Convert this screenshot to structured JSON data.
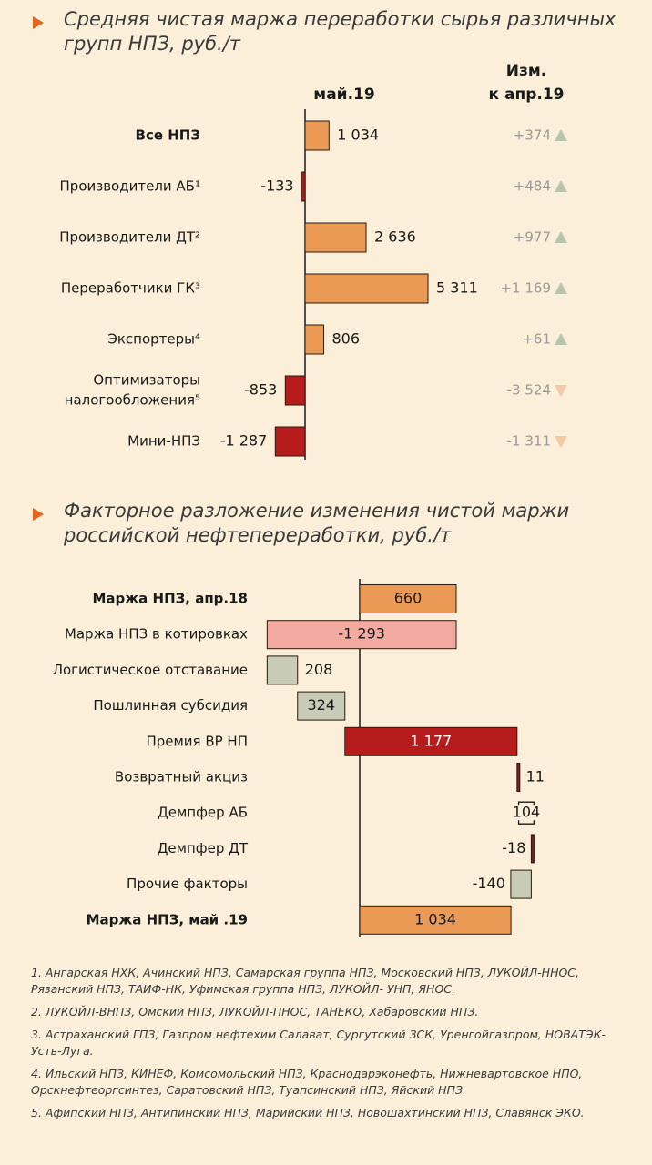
{
  "section1": {
    "title": "Средняя чистая маржа переработки сырья различных групп НПЗ, руб./т"
  },
  "section2": {
    "title": "Факторное разложение изменения чистой маржи российской нефтепереработки, руб./т"
  },
  "chart_data": [
    {
      "type": "bar",
      "orientation": "horizontal",
      "title": "Средняя чистая маржа переработки сырья различных групп НПЗ, руб./т",
      "value_column_header": "май.19",
      "change_column_header": [
        "Изм.",
        "к апр.19"
      ],
      "categories": [
        {
          "label": "Все НПЗ",
          "bold": true
        },
        {
          "label": "Производители АБ¹"
        },
        {
          "label": "Производители ДТ²"
        },
        {
          "label": "Переработчики ГК³"
        },
        {
          "label": "Экспортеры⁴"
        },
        {
          "label": "Оптимизаторы налогообложения⁵",
          "lines": [
            "Оптимизаторы",
            "налогообложения⁵"
          ]
        },
        {
          "label": "Мини-НПЗ"
        }
      ],
      "values": [
        1034,
        -133,
        2636,
        5311,
        806,
        -853,
        -1287
      ],
      "value_labels": [
        "1 034",
        "-133",
        "2 636",
        "5 311",
        "806",
        "-853",
        "-1 287"
      ],
      "changes": [
        374,
        484,
        977,
        1169,
        61,
        -3524,
        -1311
      ],
      "change_labels": [
        "+374",
        "+484",
        "+977",
        "+1 169",
        "+61",
        "-3 524",
        "-1 311"
      ],
      "colors": {
        "positive": "#eb9a55",
        "negative": "#b71c1c",
        "up_arrow": "#b9c4aa",
        "down_arrow": "#f3c9a6",
        "change_text": "#9a9a9a"
      },
      "grid": false
    },
    {
      "type": "bar",
      "subtype": "waterfall",
      "orientation": "horizontal",
      "title": "Факторное разложение изменения чистой маржи российской нефтепереработки, руб./т",
      "categories": [
        {
          "label": "Маржа НПЗ, апр.18",
          "bold": true
        },
        {
          "label": "Маржа НПЗ в котировках"
        },
        {
          "label": "Логистическое отставание"
        },
        {
          "label": "Пошлинная субсидия"
        },
        {
          "label": "Премия ВР НП"
        },
        {
          "label": "Возвратный акциз"
        },
        {
          "label": "Демпфер АБ"
        },
        {
          "label": "Демпфер ДТ"
        },
        {
          "label": "Прочие факторы"
        },
        {
          "label": "Маржа НПЗ, май .19",
          "bold": true
        }
      ],
      "values": [
        660,
        -1293,
        208,
        324,
        1177,
        11,
        104,
        -18,
        -140,
        1034
      ],
      "value_labels": [
        "660",
        "-1 293",
        "208",
        "324",
        "1 177",
        "11",
        "104",
        "-18",
        "-140",
        "1 034"
      ],
      "kinds": [
        "total",
        "delta",
        "delta",
        "delta",
        "delta",
        "delta",
        "delta",
        "delta",
        "delta",
        "total"
      ],
      "colors": {
        "total": "#eb9a55",
        "quotes": "#f3aaa0",
        "logistics": "#c8cbb5",
        "duty": "#c8cbb5",
        "premium": "#b71c1c",
        "small_positive": "#7a1f1f",
        "other": "#c8cbb5"
      },
      "grid": false
    }
  ],
  "footnotes": [
    "1. Ангарская НХК, Ачинский НПЗ, Самарская группа НПЗ, Московский НПЗ, ЛУКОЙЛ-ННОС, Рязанский НПЗ, ТАИФ-НК, Уфимская группа НПЗ, ЛУКОЙЛ- УНП, ЯНОС.",
    "2. ЛУКОЙЛ-ВНПЗ, Омский НПЗ, ЛУКОЙЛ-ПНОС, ТАНЕКО, Хабаровский НПЗ.",
    "3. Астраханский ГПЗ, Газпром нефтехим Салават, Сургутский ЗСК, Уренгойгазпром, НОВАТЭК-Усть-Луга.",
    "4. Ильский НПЗ, КИНЕФ, Комсомольский НПЗ, Краснодарэконефть, Нижневартовское НПО, Орскнефтеоргсинтез, Саратовский НПЗ, Туапсинский НПЗ, Яйский НПЗ.",
    "5. Афипский НПЗ, Антипинский НПЗ, Марийский НПЗ, Новошахтинский НПЗ, Славянск ЭКО."
  ]
}
